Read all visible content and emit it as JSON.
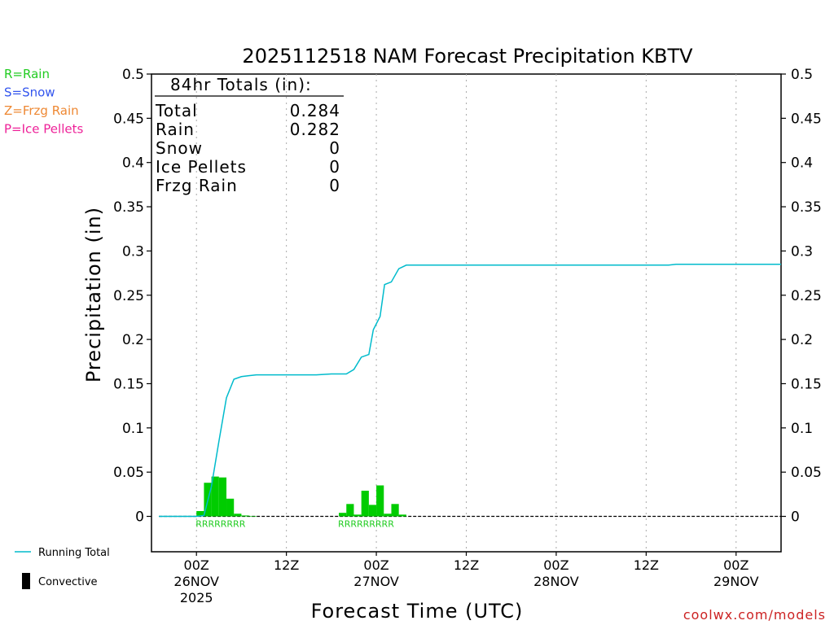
{
  "chart_data": {
    "type": "bar",
    "title": "2025112518 NAM Forecast Precipitation KBTV",
    "ylabel": "Precipitation (in)",
    "xlabel": "Forecast Time (UTC)",
    "ylim": [
      -0.04,
      0.5
    ],
    "xlim_hours_from_00Z_26NOV": [
      -6,
      78
    ],
    "y_ticks": [
      "0",
      "0.05",
      "0.1",
      "0.15",
      "0.2",
      "0.25",
      "0.3",
      "0.35",
      "0.4",
      "0.45",
      "0.5"
    ],
    "x_ticks": [
      {
        "hour": 0,
        "line1": "00Z",
        "line2": "26NOV",
        "line3": "2025"
      },
      {
        "hour": 12,
        "line1": "12Z",
        "line2": "",
        "line3": ""
      },
      {
        "hour": 24,
        "line1": "00Z",
        "line2": "27NOV",
        "line3": ""
      },
      {
        "hour": 36,
        "line1": "12Z",
        "line2": "",
        "line3": ""
      },
      {
        "hour": 48,
        "line1": "00Z",
        "line2": "28NOV",
        "line3": ""
      },
      {
        "hour": 60,
        "line1": "12Z",
        "line2": "",
        "line3": ""
      },
      {
        "hour": 72,
        "line1": "00Z",
        "line2": "29NOV",
        "line3": ""
      }
    ],
    "grid": "vertical dotted at tick positions",
    "totals_box": {
      "header": "84hr Totals (in):",
      "rows": [
        {
          "label": "Total",
          "value": "0.284"
        },
        {
          "label": "Rain",
          "value": "0.282"
        },
        {
          "label": "Snow",
          "value": "0"
        },
        {
          "label": "Ice Pellets",
          "value": "0"
        },
        {
          "label": "Frzg Rain",
          "value": "0"
        }
      ]
    },
    "ptype_legend": [
      {
        "text": "R=Rain",
        "color": "#22cc22"
      },
      {
        "text": "S=Snow",
        "color": "#3355ee"
      },
      {
        "text": "Z=Frzg Rain",
        "color": "#ee8833"
      },
      {
        "text": "P=Ice Pellets",
        "color": "#ee2299"
      }
    ],
    "series_legend": [
      {
        "text": "Running Total",
        "kind": "line",
        "color": "#00bbcc"
      },
      {
        "text": "Convective",
        "kind": "bar",
        "color": "#000000"
      }
    ],
    "bars": [
      {
        "hour": 1,
        "value": 0.006
      },
      {
        "hour": 2,
        "value": 0.038
      },
      {
        "hour": 3,
        "value": 0.045
      },
      {
        "hour": 4,
        "value": 0.044
      },
      {
        "hour": 5,
        "value": 0.02
      },
      {
        "hour": 6,
        "value": 0.003
      },
      {
        "hour": 7,
        "value": 0.001
      },
      {
        "hour": 8,
        "value": 0.0005
      },
      {
        "hour": 20,
        "value": 0.004
      },
      {
        "hour": 21,
        "value": 0.014
      },
      {
        "hour": 22,
        "value": 0.002
      },
      {
        "hour": 23,
        "value": 0.029
      },
      {
        "hour": 24,
        "value": 0.013
      },
      {
        "hour": 25,
        "value": 0.035
      },
      {
        "hour": 26,
        "value": 0.003
      },
      {
        "hour": 27,
        "value": 0.014
      },
      {
        "hour": 28,
        "value": 0.002
      }
    ],
    "bar_color": "#00cc00",
    "ptype_rows": [
      {
        "start_hour": 1,
        "text": "RRRRRRRR"
      },
      {
        "start_hour": 20,
        "text": "RRRRRRRRR"
      }
    ],
    "running_total": {
      "name": "Running Total",
      "color": "#00bbcc",
      "points": [
        [
          -5,
          0
        ],
        [
          0,
          0
        ],
        [
          1,
          0.001
        ],
        [
          2,
          0.034
        ],
        [
          3,
          0.085
        ],
        [
          4,
          0.134
        ],
        [
          5,
          0.155
        ],
        [
          6,
          0.158
        ],
        [
          7,
          0.159
        ],
        [
          8,
          0.16
        ],
        [
          10,
          0.16
        ],
        [
          12,
          0.16
        ],
        [
          14,
          0.16
        ],
        [
          16,
          0.16
        ],
        [
          18,
          0.161
        ],
        [
          20,
          0.161
        ],
        [
          21,
          0.166
        ],
        [
          22,
          0.18
        ],
        [
          23,
          0.183
        ],
        [
          23.6,
          0.211
        ],
        [
          24.5,
          0.226
        ],
        [
          25.1,
          0.262
        ],
        [
          26,
          0.265
        ],
        [
          27,
          0.28
        ],
        [
          28,
          0.284
        ],
        [
          30,
          0.284
        ],
        [
          40,
          0.284
        ],
        [
          50,
          0.284
        ],
        [
          63,
          0.284
        ],
        [
          64,
          0.285
        ],
        [
          78,
          0.285
        ]
      ]
    },
    "watermark": "coolwx.com/models"
  }
}
